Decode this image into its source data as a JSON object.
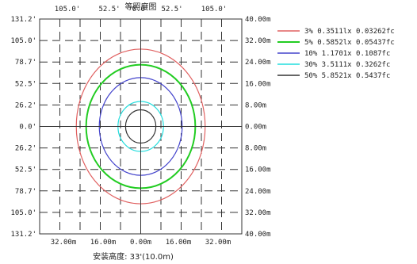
{
  "chart_data": {
    "type": "line",
    "title": "等照度图",
    "top_labels": [
      "105.0'",
      "52.5'",
      "0.0'",
      "52.5'",
      "105.0'"
    ],
    "left_labels": [
      "131.2'",
      "105.0'",
      "78.7'",
      "52.5'",
      "26.2'",
      "0.0'",
      "26.2'",
      "52.5'",
      "78.7'",
      "105.0'",
      "131.2'"
    ],
    "right_labels": [
      "40.00m",
      "32.00m",
      "24.00m",
      "16.00m",
      "8.00m",
      "0.00m",
      "8.00m",
      "16.00m",
      "24.00m",
      "32.00m",
      "40.00m"
    ],
    "bottom_labels": [
      "32.00m",
      "16.00m",
      "0.00m",
      "16.00m",
      "32.00m"
    ],
    "xlabel": "安装高度: 33'(10.0m)",
    "x_range": [
      -40,
      40
    ],
    "y_range": [
      -40,
      40
    ],
    "grid": true,
    "legend_position": "right",
    "series": [
      {
        "name": "3%  0.3511lx 0.03262fc",
        "color": "#e06060",
        "radius_x": 25.5,
        "radius_y": 28.8
      },
      {
        "name": "5%  0.5852lx 0.05437fc",
        "color": "#22cc22",
        "radius_x": 21.6,
        "radius_y": 23.0
      },
      {
        "name": "10% 1.1701x 0.1087fc",
        "color": "#4444cc",
        "radius_x": 16.4,
        "radius_y": 18.2
      },
      {
        "name": "30% 3.5111x 0.3262fc",
        "color": "#22dddd",
        "radius_x": 9.0,
        "radius_y": 9.3
      },
      {
        "name": "50% 5.8521x 0.5437fc",
        "color": "#333333",
        "radius_x": 6.0,
        "radius_y": 6.2
      }
    ]
  }
}
